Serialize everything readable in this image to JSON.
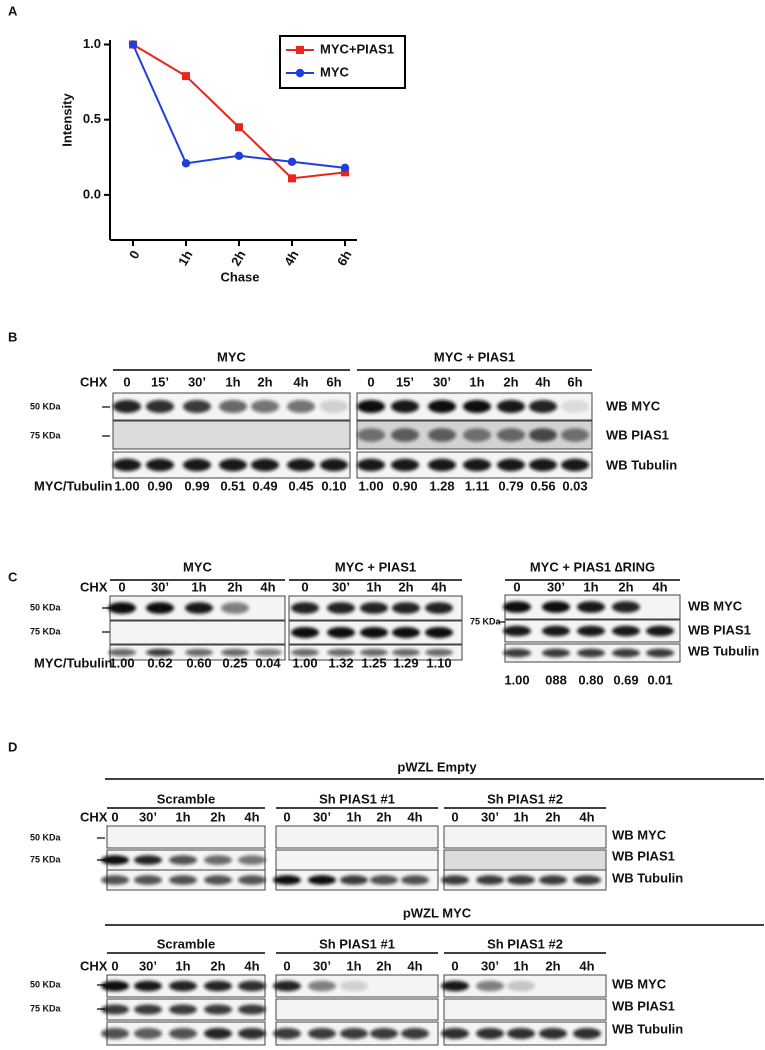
{
  "chart_data": {
    "type": "line",
    "panel_label": "A",
    "y_label": "Intensity",
    "x_label": "Chase",
    "categories": [
      "0",
      "1h",
      "2h",
      "4h",
      "6h"
    ],
    "series": [
      {
        "name": "MYC+PIAS1",
        "color": "#e8261c",
        "marker": "square",
        "values": [
          1.0,
          0.79,
          0.45,
          0.11,
          0.15
        ]
      },
      {
        "name": "MYC",
        "color": "#1f3ee0",
        "marker": "circle",
        "values": [
          1.0,
          0.21,
          0.26,
          0.22,
          0.18
        ]
      }
    ],
    "ylim": [
      -0.3,
      1.03
    ],
    "yticks": [
      {
        "value": 0,
        "label": "0.0"
      },
      {
        "value": 0.5,
        "label": "0.5"
      },
      {
        "value": 1,
        "label": "1.0"
      }
    ],
    "legend": "upper right"
  },
  "blot_b": {
    "label": "B",
    "cond_label": "CHX",
    "ratio_label": "MYC/Tubulin",
    "markers": [
      "50 KDa",
      "75 KDa"
    ],
    "rows": [
      "WB MYC",
      "WB PIAS1",
      "WB Tubulin"
    ],
    "groups": [
      {
        "title": "MYC",
        "lanes": [
          "0",
          "15’",
          "30’",
          "1h",
          "2h",
          "4h",
          "6h"
        ],
        "ratios": [
          "1.00",
          "0.90",
          "0.99",
          "0.51",
          "0.49",
          "0.45",
          "0.10"
        ]
      },
      {
        "title": "MYC + PIAS1",
        "lanes": [
          "0",
          "15’",
          "30’",
          "1h",
          "2h",
          "4h",
          "6h"
        ],
        "ratios": [
          "1.00",
          "0.90",
          "1.28",
          "1.11",
          "0.79",
          "0.56",
          "0.03"
        ]
      }
    ]
  },
  "blot_c": {
    "label": "C",
    "cond_label": "CHX",
    "ratio_label": "MYC/Tubulin",
    "markers": [
      "50 KDa",
      "75 KDa",
      "75 KDa"
    ],
    "rows": [
      "WB MYC",
      "WB PIAS1",
      "WB Tubulin"
    ],
    "groups": [
      {
        "title": "MYC",
        "lanes": [
          "0",
          "30’",
          "1h",
          "2h",
          "4h"
        ],
        "ratios": [
          "1.00",
          "0.62",
          "0.60",
          "0.25",
          "0.04"
        ]
      },
      {
        "title": "MYC + PIAS1",
        "lanes": [
          "0",
          "30’",
          "1h",
          "2h",
          "4h"
        ],
        "ratios": [
          "1.00",
          "1.32",
          "1.25",
          "1.29",
          "1.10"
        ]
      },
      {
        "title": "MYC + PIAS1 ∆RING",
        "lanes": [
          "0",
          "30’",
          "1h",
          "2h",
          "4h"
        ],
        "ratios": [
          "1.00",
          "088",
          "0.80",
          "0.69",
          "0.01"
        ]
      }
    ]
  },
  "blot_d": {
    "label": "D",
    "sections": [
      {
        "title": "pWZL Empty",
        "cond_label": "CHX",
        "markers": [
          "50 KDa",
          "75 KDa"
        ],
        "rows": [
          "WB MYC",
          "WB PIAS1",
          "WB Tubulin"
        ],
        "groups": [
          {
            "title": "Scramble",
            "lanes": [
              "0",
              "30’",
              "1h",
              "2h",
              "4h"
            ]
          },
          {
            "title": "Sh PIAS1 #1",
            "lanes": [
              "0",
              "30’",
              "1h",
              "2h",
              "4h"
            ]
          },
          {
            "title": "Sh PIAS1 #2",
            "lanes": [
              "0",
              "30’",
              "1h",
              "2h",
              "4h"
            ]
          }
        ]
      },
      {
        "title": "pWZL MYC",
        "cond_label": "CHX",
        "markers": [
          "50 KDa",
          "75 KDa"
        ],
        "rows": [
          "WB MYC",
          "WB PIAS1",
          "WB Tubulin"
        ],
        "groups": [
          {
            "title": "Scramble",
            "lanes": [
              "0",
              "30’",
              "1h",
              "2h",
              "4h"
            ]
          },
          {
            "title": "Sh PIAS1 #1",
            "lanes": [
              "0",
              "30’",
              "1h",
              "2h",
              "4h"
            ]
          },
          {
            "title": "Sh PIAS1 #2",
            "lanes": [
              "0",
              "30’",
              "1h",
              "2h",
              "4h"
            ]
          }
        ]
      }
    ]
  }
}
